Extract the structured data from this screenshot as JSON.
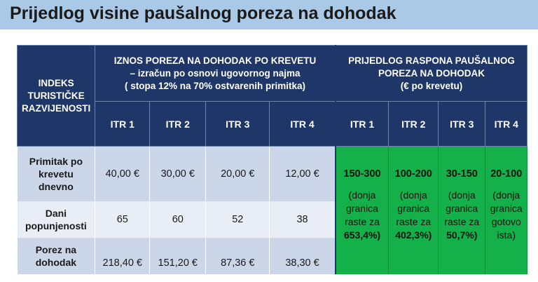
{
  "title": "Prijedlog visine paušalnog poreza na dohodak",
  "table": {
    "index_header": "INDEKS TURISTIČKE RAZVIJENOSTI",
    "group1_header": [
      "IZNOS POREZA NA DOHODAK PO KREVETU",
      "– izračun po osnovi ugovornog najma",
      "( stopa 12% na 70% ostvarenih primitka)"
    ],
    "group2_header": [
      "PRIJEDLOG RASPONA PAUŠALNOG",
      "POREZA NA DOHODAK",
      "(€ po krevetu)"
    ],
    "itr_cols": [
      "ITR 1",
      "ITR 2",
      "ITR 3",
      "ITR 4"
    ],
    "rows": [
      {
        "label": "Primitak po krevetu dnevno",
        "values": [
          "40,00 €",
          "30,00 €",
          "20,00 €",
          "12,00 €"
        ]
      },
      {
        "label": "Dani popunjenosti",
        "values": [
          "65",
          "60",
          "52",
          "38"
        ]
      },
      {
        "label": "Porez na dohodak",
        "values": [
          "218,40 €",
          "151,20 €",
          "87,36 €",
          "38,30 €"
        ]
      }
    ],
    "proposals": [
      {
        "range": "150-300",
        "note_lines": [
          "(donja",
          "granica",
          "raste za"
        ],
        "note_bold": "653,4%)"
      },
      {
        "range": "100-200",
        "note_lines": [
          "(donja",
          "granica",
          "raste za"
        ],
        "note_bold": "402,3%)"
      },
      {
        "range": "30-150",
        "note_lines": [
          "(donja",
          "granica",
          "raste za"
        ],
        "note_bold": "50,7%)"
      },
      {
        "range": "20-100",
        "note_lines": [
          "(donja",
          "granica",
          "gotovo",
          "ista)"
        ],
        "note_bold": ""
      }
    ]
  },
  "colors": {
    "header_bg": "#1f3768",
    "green": "#14b049",
    "light_row": "#cbd6e9",
    "title_bar": "#a9c9e6"
  }
}
